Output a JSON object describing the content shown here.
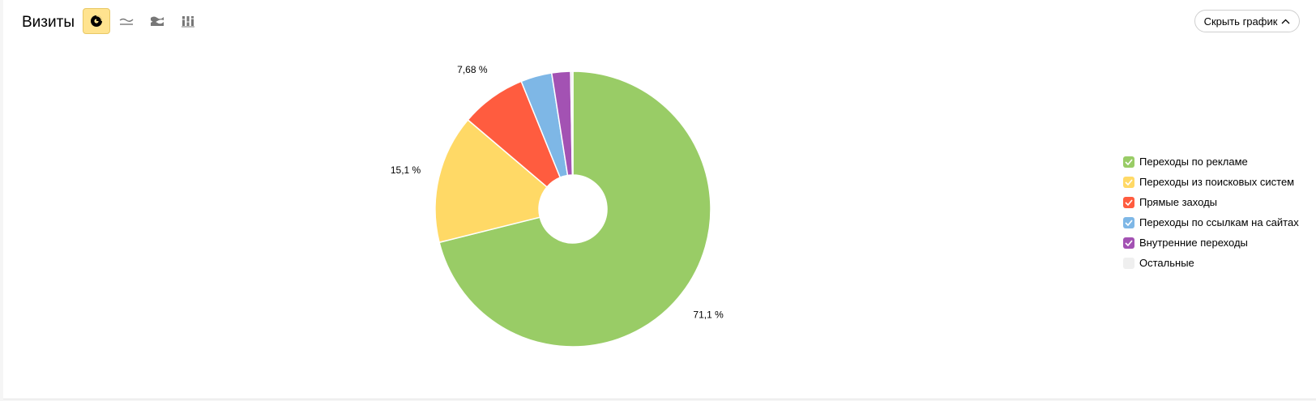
{
  "header": {
    "title": "Визиты",
    "hide_chart_label": "Скрыть график"
  },
  "toolbar": {
    "tools": [
      {
        "icon": "pie-chart-icon",
        "active": true
      },
      {
        "icon": "line-chart-icon",
        "active": false
      },
      {
        "icon": "area-chart-icon",
        "active": false
      },
      {
        "icon": "bar-chart-icon",
        "active": false
      }
    ]
  },
  "chart_data": {
    "type": "pie",
    "donut": true,
    "slices": [
      {
        "label": "Переходы по рекламе",
        "value": 71.1,
        "data_label": "71,1 %",
        "color": "#99cc66",
        "checked": true
      },
      {
        "label": "Переходы из поисковых систем",
        "value": 15.1,
        "data_label": "15,1 %",
        "color": "#ffd966",
        "checked": true
      },
      {
        "label": "Прямые заходы",
        "value": 7.68,
        "data_label": "7,68 %",
        "color": "#ff5c3f",
        "checked": true
      },
      {
        "label": "Переходы по ссылкам на сайтах",
        "value": 3.65,
        "data_label": "",
        "color": "#7eb7e6",
        "checked": true
      },
      {
        "label": "Внутренние переходы",
        "value": 2.2,
        "data_label": "",
        "color": "#a352b3",
        "checked": true
      },
      {
        "label": "Остальные",
        "value": 0.27,
        "data_label": "",
        "color": "#eeeeee",
        "checked": false
      }
    ],
    "legend_position": "right"
  }
}
